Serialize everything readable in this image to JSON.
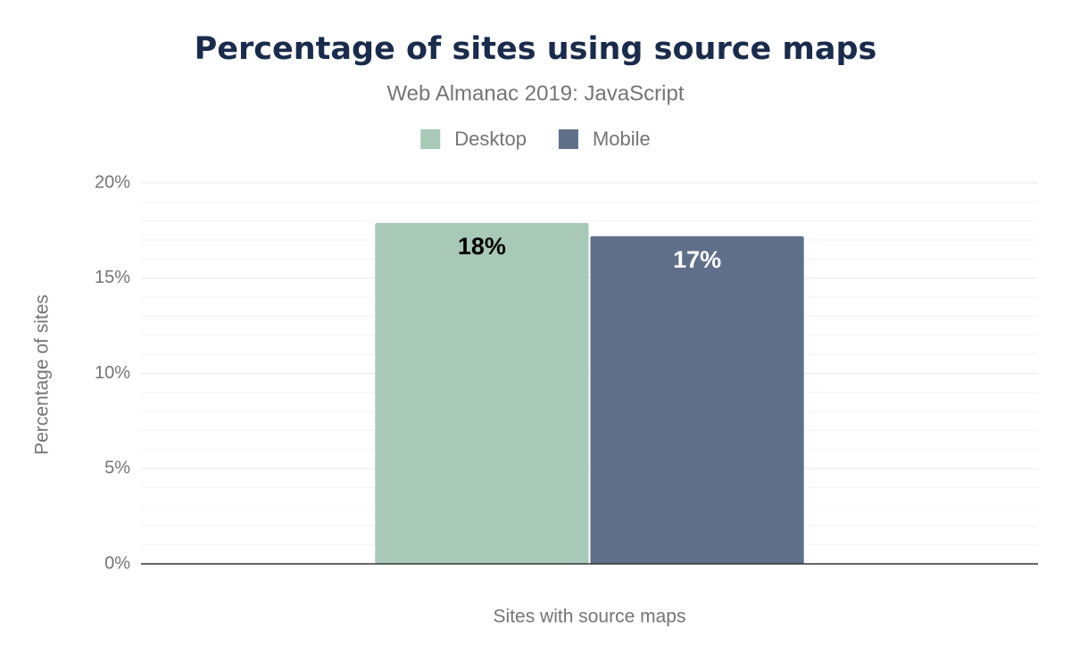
{
  "chart_data": {
    "type": "bar",
    "title": "Percentage of sites using source maps",
    "subtitle": "Web Almanac 2019: JavaScript",
    "y_label": "Percentage of sites",
    "categories": [
      "Sites with source maps"
    ],
    "series": [
      {
        "name": "Desktop",
        "color": "#a8c9b8",
        "values": [
          17.9
        ],
        "value_labels": [
          "18%"
        ]
      },
      {
        "name": "Mobile",
        "color": "#5f6f8a",
        "values": [
          17.2
        ],
        "value_labels": [
          "17%"
        ]
      }
    ],
    "ylim": [
      0,
      20
    ],
    "yticks": [
      {
        "value": 0,
        "label": "0%"
      },
      {
        "value": 5,
        "label": "5%"
      },
      {
        "value": 10,
        "label": "10%"
      },
      {
        "value": 15,
        "label": "15%"
      },
      {
        "value": 20,
        "label": "20%"
      }
    ],
    "minor_yticks": [
      1,
      2,
      3,
      4,
      6,
      7,
      8,
      9,
      11,
      12,
      13,
      14,
      16,
      17,
      18,
      19
    ],
    "grid": true,
    "legend": "top"
  }
}
